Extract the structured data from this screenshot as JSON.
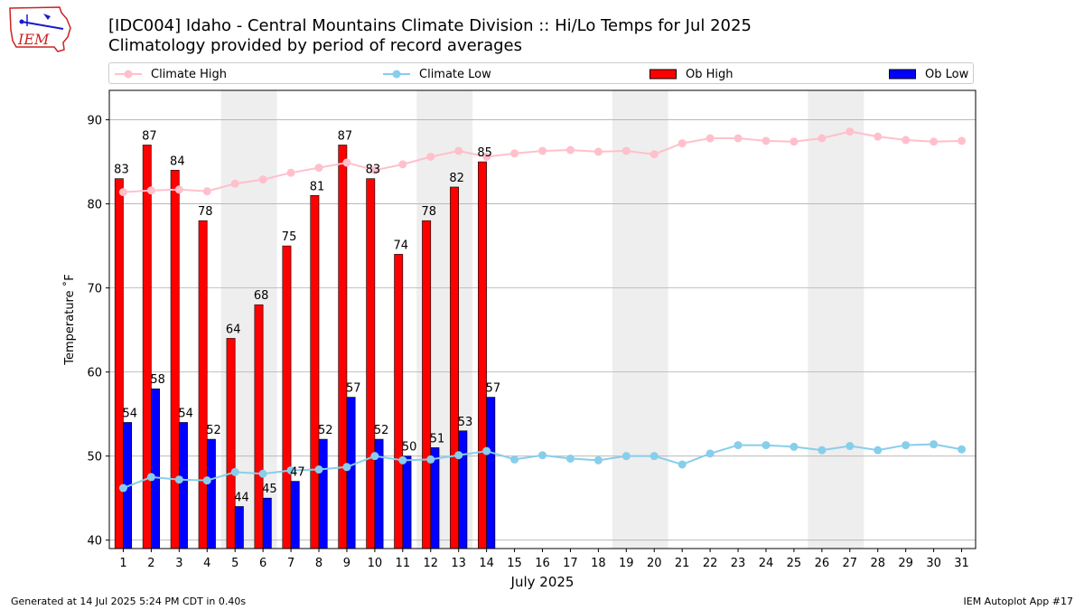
{
  "header": {
    "logo_text": "IEM",
    "title_line1": "[IDC004] Idaho - Central Mountains Climate Division :: Hi/Lo Temps for Jul 2025",
    "title_line2": "Climatology provided by period of record averages"
  },
  "legend": {
    "items": [
      "Climate High",
      "Climate Low",
      "Ob High",
      "Ob Low"
    ],
    "placement": "top"
  },
  "footer": {
    "generated": "Generated at 14 Jul 2025 5:24 PM CDT in 0.40s",
    "app": "IEM Autoplot App #17"
  },
  "colors": {
    "ob_high": "#ff0000",
    "ob_low": "#0000ff",
    "climate_high": "#ffc0cb",
    "climate_low": "#87ceeb",
    "weekend_band": "#eeeeee",
    "grid": "#b0b0b0"
  },
  "chart_data": {
    "type": "bar",
    "title": "[IDC004] Idaho - Central Mountains Climate Division :: Hi/Lo Temps for Jul 2025",
    "subtitle": "Climatology provided by period of record averages",
    "xlabel": "July 2025",
    "ylabel": "Temperature $^\\circ$F",
    "ylabel_display": "Temperature ˚F",
    "xlim": [
      0.5,
      31.5
    ],
    "ylim": [
      39,
      93.5
    ],
    "yticks": [
      40,
      50,
      60,
      70,
      80,
      90
    ],
    "grid": "y",
    "x": [
      1,
      2,
      3,
      4,
      5,
      6,
      7,
      8,
      9,
      10,
      11,
      12,
      13,
      14,
      15,
      16,
      17,
      18,
      19,
      20,
      21,
      22,
      23,
      24,
      25,
      26,
      27,
      28,
      29,
      30,
      31
    ],
    "weekend_bands": [
      [
        5,
        6
      ],
      [
        12,
        13
      ],
      [
        19,
        20
      ],
      [
        26,
        27
      ]
    ],
    "series": [
      {
        "name": "Ob High",
        "kind": "bar",
        "x": [
          1,
          2,
          3,
          4,
          5,
          6,
          7,
          8,
          9,
          10,
          11,
          12,
          13,
          14
        ],
        "values": [
          83,
          87,
          84,
          78,
          64,
          68,
          75,
          81,
          87,
          83,
          74,
          78,
          82,
          85
        ]
      },
      {
        "name": "Ob Low",
        "kind": "bar",
        "x": [
          1,
          2,
          3,
          4,
          5,
          6,
          7,
          8,
          9,
          10,
          11,
          12,
          13,
          14
        ],
        "values": [
          54,
          58,
          54,
          52,
          44,
          45,
          47,
          52,
          57,
          52,
          50,
          51,
          53,
          57
        ]
      },
      {
        "name": "Climate High",
        "kind": "line",
        "values": [
          81.4,
          81.6,
          81.7,
          81.5,
          82.4,
          82.9,
          83.7,
          84.3,
          84.9,
          84.0,
          84.7,
          85.6,
          86.3,
          85.6,
          86.0,
          86.3,
          86.4,
          86.2,
          86.3,
          85.9,
          87.2,
          87.8,
          87.8,
          87.5,
          87.4,
          87.8,
          88.6,
          88.0,
          87.6,
          87.4,
          87.5
        ]
      },
      {
        "name": "Climate Low",
        "kind": "line",
        "values": [
          46.2,
          47.5,
          47.2,
          47.1,
          48.1,
          47.9,
          48.3,
          48.4,
          48.7,
          50.0,
          49.5,
          49.6,
          50.1,
          50.6,
          49.6,
          50.1,
          49.7,
          49.5,
          50.0,
          50.0,
          49.0,
          50.3,
          51.3,
          51.3,
          51.1,
          50.7,
          51.2,
          50.7,
          51.3,
          51.4,
          50.8
        ]
      }
    ]
  }
}
